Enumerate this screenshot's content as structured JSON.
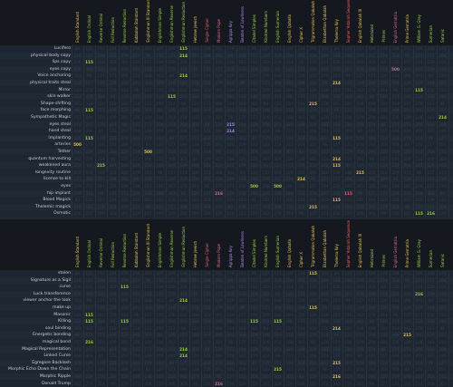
{
  "columns": [
    {
      "label": "English Standard",
      "color": "#e8c35a"
    },
    {
      "label": "English Ordinal",
      "color": "#9fd24a"
    },
    {
      "label": "Reverse Ordinal",
      "color": "#9fd24a"
    },
    {
      "label": "Full Reduction",
      "color": "#9fd24a"
    },
    {
      "label": "Reverse Reduction",
      "color": "#9fd24a"
    },
    {
      "label": "Kabbalah Standard",
      "color": "#e8c35a"
    },
    {
      "label": "Englishman III Standard",
      "color": "#e8c35a"
    },
    {
      "label": "Englishman Simple",
      "color": "#9fd24a"
    },
    {
      "label": "Englishman Reverse",
      "color": "#9fd24a"
    },
    {
      "label": "Englishman Reduction",
      "color": "#9fd24a"
    },
    {
      "label": "Hebrew Jewish",
      "color": "#e8c35a"
    },
    {
      "label": "Single Cipher",
      "color": "#e86060"
    },
    {
      "label": "Modern Pope",
      "color": "#d86a9a"
    },
    {
      "label": "Agrippa Key",
      "color": "#a98ae8"
    },
    {
      "label": "Beaten of Lowliness",
      "color": "#a98ae8"
    },
    {
      "label": "Citadel Simplex",
      "color": "#9fd24a"
    },
    {
      "label": "Kindred Numbers",
      "color": "#9fd24a"
    },
    {
      "label": "English Sumerian",
      "color": "#9fd24a"
    },
    {
      "label": "English Qaballa",
      "color": "#e8c35a"
    },
    {
      "label": "Cipher X",
      "color": "#e8c35a"
    },
    {
      "label": "Trigrammaton Qabalah",
      "color": "#e8c35a"
    },
    {
      "label": "Elizabethan Qabalah",
      "color": "#e8c35a"
    },
    {
      "label": "Thelema Key",
      "color": "#e8c35a"
    },
    {
      "label": "Sepher Yetzirah Sequence",
      "color": "#e86060"
    },
    {
      "label": "English Qabalah III",
      "color": "#e8c35a"
    },
    {
      "label": "Hebraized",
      "color": "#9fd24a"
    },
    {
      "label": "Primes",
      "color": "#9fd24a"
    },
    {
      "label": "English Gematria",
      "color": "#d86a9a"
    },
    {
      "label": "Prime Gematria",
      "color": "#e8c35a"
    },
    {
      "label": "William G. Gray",
      "color": "#9fd24a"
    },
    {
      "label": "Sumerian",
      "color": "#9fd24a"
    },
    {
      "label": "Satanic",
      "color": "#9fd24a"
    }
  ],
  "section1": [
    {
      "label": "Lucifero",
      "values": {
        "9": "115"
      }
    },
    {
      "label": "physical body copy",
      "values": {
        "9": "214"
      }
    },
    {
      "label": "lips copy",
      "values": {
        "1": "115"
      }
    },
    {
      "label": "eyes copy",
      "values": {
        "27": "500"
      }
    },
    {
      "label": "Voice anchoring",
      "values": {
        "9": "214"
      }
    },
    {
      "label": "physical traits steal",
      "values": {
        "22": "214"
      }
    },
    {
      "label": "Mirror",
      "values": {
        "29": "115"
      }
    },
    {
      "label": "skin walker",
      "values": {
        "8": "115"
      }
    },
    {
      "label": "Shape-shifting",
      "values": {
        "20": "215"
      }
    },
    {
      "label": "face morphing",
      "values": {
        "1": "115"
      }
    },
    {
      "label": "Sympathetic Magic",
      "values": {
        "31": "214"
      }
    },
    {
      "label": "eyes steal",
      "values": {
        "13": "215"
      }
    },
    {
      "label": "hand steal",
      "values": {
        "13": "214"
      }
    },
    {
      "label": "implanting",
      "values": {
        "1": "115",
        "22": "115"
      }
    },
    {
      "label": "arteries",
      "values": {
        "0": "500"
      }
    },
    {
      "label": "Tether",
      "values": {
        "6": "500"
      }
    },
    {
      "label": "quantum harvesting",
      "values": {
        "22": "214"
      }
    },
    {
      "label": "weakened aura",
      "values": {
        "2": "215",
        "22": "115"
      }
    },
    {
      "label": "longevity routine",
      "values": {
        "24": "215"
      }
    },
    {
      "label": "license to kill",
      "values": {
        "19": "214"
      }
    },
    {
      "label": "eyes",
      "values": {
        "15": "500",
        "17": "500"
      }
    },
    {
      "label": "hip implant",
      "values": {
        "12": "216",
        "23": "115"
      }
    },
    {
      "label": "Blood Magick",
      "values": {
        "22": "115"
      }
    },
    {
      "label": "Thelemic magick",
      "values": {
        "20": "215"
      }
    },
    {
      "label": "Osmotic",
      "values": {
        "29": "115",
        "30": "216"
      }
    }
  ],
  "section2": [
    {
      "label": "stolen",
      "values": {
        "20": "115"
      }
    },
    {
      "label": "Signature as a Sigil",
      "values": {}
    },
    {
      "label": "curse",
      "values": {
        "4": "115"
      }
    },
    {
      "label": "Luck transference",
      "values": {
        "29": "216"
      }
    },
    {
      "label": "viewer anchor the look",
      "values": {
        "9": "214"
      }
    },
    {
      "label": "make up",
      "values": {
        "20": "115"
      }
    },
    {
      "label": "Masonic",
      "values": {
        "1": "115"
      }
    },
    {
      "label": "Killing",
      "values": {
        "1": "115",
        "4": "115",
        "15": "115",
        "17": "115"
      }
    },
    {
      "label": "soul binding",
      "values": {
        "22": "214"
      }
    },
    {
      "label": "Energetic bonding",
      "values": {
        "28": "215"
      }
    },
    {
      "label": "magical bond",
      "values": {
        "1": "216"
      }
    },
    {
      "label": "Magical Representation",
      "values": {
        "9": "214"
      }
    },
    {
      "label": "Linked Curse",
      "values": {
        "9": "214"
      }
    },
    {
      "label": "Egregore Backlash",
      "values": {
        "22": "215"
      }
    },
    {
      "label": "Morphic Echo Down the Chain",
      "values": {
        "17": "215"
      }
    },
    {
      "label": "Morphic Ripple",
      "values": {
        "22": "216"
      }
    },
    {
      "label": "Donald Trump",
      "values": {
        "12": "216"
      }
    }
  ],
  "filler": [
    "84",
    "96",
    "109",
    "120",
    "137",
    "148",
    "157",
    "171",
    "183",
    "194",
    "206",
    "218",
    "229",
    "233",
    "242",
    "256",
    "268",
    "279",
    "291",
    "303",
    "314",
    "326"
  ]
}
